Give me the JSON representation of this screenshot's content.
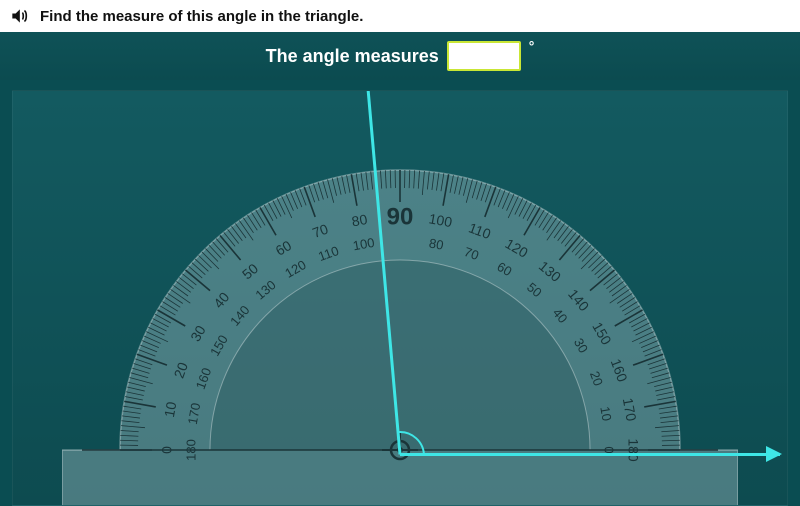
{
  "question": {
    "prompt": "Find the measure of this angle in the triangle.",
    "answer_label": "The angle measures",
    "unit_symbol": "°",
    "input_value": ""
  },
  "angle": {
    "ray1_deg": 0,
    "ray2_deg": 95,
    "indicator_color": "#3ee6e6",
    "ray_color": "#3ee6e6"
  },
  "protractor": {
    "radius_outer": 280,
    "radius_tick_major_inner": 248,
    "radius_tick_minor_inner": 262,
    "radius_label_outer": 232,
    "radius_label_inner": 208,
    "radius_arc_inner": 190,
    "base_half_width": 338,
    "base_height": 60,
    "body_fill": "rgba(170,200,205,0.38)",
    "body_stroke": "rgba(255,255,255,0.35)",
    "tick_stroke": "#1a3438",
    "outer_scale": [
      0,
      10,
      20,
      30,
      40,
      50,
      60,
      70,
      80,
      90,
      100,
      110,
      120,
      130,
      140,
      150,
      160,
      170,
      180
    ],
    "inner_scale": [
      180,
      170,
      160,
      150,
      140,
      130,
      120,
      110,
      100,
      90,
      80,
      70,
      60,
      50,
      40,
      30,
      20,
      10,
      0
    ],
    "center_dot_color": "#1a3438"
  },
  "colors": {
    "page_bg": "#0a4d52",
    "canvas_bg_top": "#135a60",
    "canvas_bg_bottom": "#0d4b50",
    "input_border": "#c9e635",
    "text_dark": "#111111"
  }
}
